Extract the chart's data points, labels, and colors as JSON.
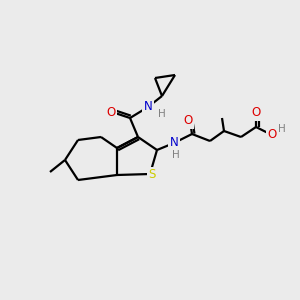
{
  "background_color": "#ebebeb",
  "atom_colors": {
    "N": "#0000cc",
    "O": "#dd0000",
    "S": "#cccc00",
    "H": "#808080"
  },
  "bond_color": "#000000",
  "lw": 1.6,
  "figsize": [
    3.0,
    3.0
  ],
  "dpi": 100
}
